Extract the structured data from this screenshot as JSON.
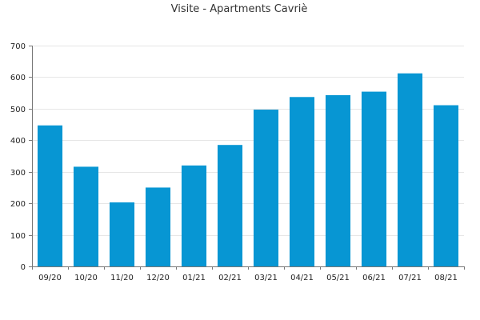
{
  "chart_data": {
    "type": "bar",
    "title": "Visite - Apartments Cavriè",
    "xlabel": "",
    "ylabel": "",
    "categories": [
      "09/20",
      "10/20",
      "11/20",
      "12/20",
      "01/21",
      "02/21",
      "03/21",
      "04/21",
      "05/21",
      "06/21",
      "07/21",
      "08/21"
    ],
    "values": [
      447,
      316,
      203,
      250,
      320,
      385,
      497,
      537,
      543,
      554,
      612,
      511
    ],
    "ylim": [
      0,
      700
    ],
    "yticks": [
      0,
      100,
      200,
      300,
      400,
      500,
      600,
      700
    ],
    "grid": true,
    "legend": "none",
    "colors": {
      "bar": "#0796d3",
      "grid": "#e6e6e6",
      "axis": "#777777",
      "text": "#222222",
      "title": "#333333"
    }
  }
}
